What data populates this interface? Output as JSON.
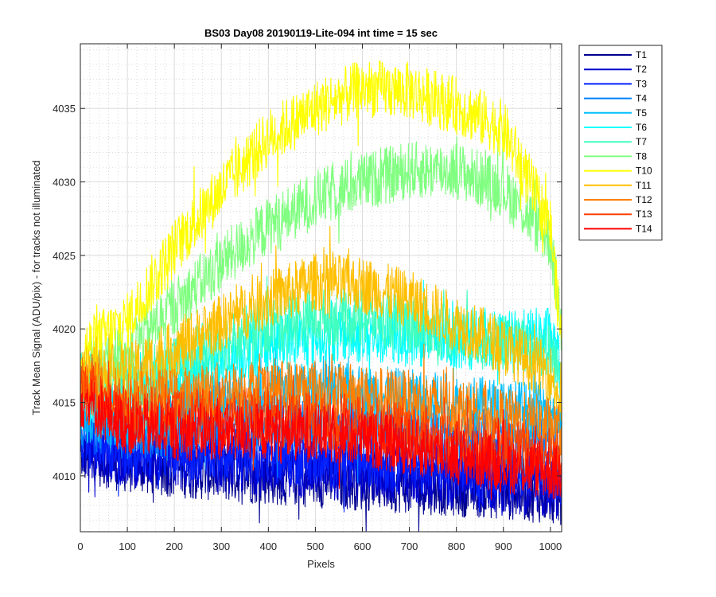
{
  "chart_data": {
    "type": "line",
    "title": "BS03 Day08 20190119-Lite-094 int time = 15 sec",
    "xlabel": "Pixels",
    "ylabel": "Track Mean Signal (ADU/pix) - for tracks not illuminated",
    "xlim": [
      0,
      1024
    ],
    "ylim": [
      4006.2,
      4039.4
    ],
    "x_ticks": [
      0,
      100,
      200,
      300,
      400,
      500,
      600,
      700,
      800,
      900,
      1000
    ],
    "y_ticks": [
      4010,
      4015,
      4020,
      4025,
      4030,
      4035
    ],
    "grid": true,
    "minor_grid": true,
    "legend_position": "outside-top-right",
    "series": [
      {
        "name": "T1",
        "color": "#00008F",
        "x": [
          0,
          100,
          200,
          300,
          400,
          500,
          600,
          700,
          800,
          900,
          1000,
          1024
        ],
        "y": [
          4011.5,
          4010.8,
          4010.5,
          4010.2,
          4010.0,
          4009.8,
          4009.6,
          4009.4,
          4009.2,
          4009.0,
          4008.7,
          4008.6
        ],
        "noise": 1.1
      },
      {
        "name": "T2",
        "color": "#0000CF",
        "x": [
          0,
          100,
          200,
          300,
          400,
          500,
          600,
          700,
          800,
          900,
          1000,
          1024
        ],
        "y": [
          4012.0,
          4011.2,
          4011.0,
          4010.8,
          4010.6,
          4010.4,
          4010.2,
          4010.0,
          4009.7,
          4009.5,
          4009.1,
          4009.0
        ],
        "noise": 1.1
      },
      {
        "name": "T3",
        "color": "#0020FF",
        "x": [
          0,
          100,
          200,
          300,
          400,
          500,
          600,
          700,
          800,
          900,
          1000,
          1024
        ],
        "y": [
          4012.6,
          4011.8,
          4011.6,
          4011.5,
          4011.4,
          4011.2,
          4011.0,
          4010.8,
          4010.6,
          4010.4,
          4010.0,
          4009.8
        ],
        "noise": 1.1
      },
      {
        "name": "T4",
        "color": "#0080FF",
        "x": [
          0,
          100,
          200,
          300,
          400,
          500,
          600,
          700,
          800,
          900,
          1000,
          1024
        ],
        "y": [
          4013.5,
          4013.0,
          4013.2,
          4013.5,
          4013.6,
          4013.5,
          4013.3,
          4013.1,
          4012.8,
          4012.5,
          4012.2,
          4011.6
        ],
        "noise": 1.1
      },
      {
        "name": "T5",
        "color": "#00BFFF",
        "x": [
          0,
          100,
          200,
          300,
          400,
          500,
          600,
          700,
          800,
          900,
          1000,
          1024
        ],
        "y": [
          4014.2,
          4014.0,
          4014.6,
          4015.2,
          4015.6,
          4015.8,
          4015.6,
          4015.3,
          4015.0,
          4014.6,
          4014.4,
          4013.8
        ],
        "noise": 1.1
      },
      {
        "name": "T6",
        "color": "#00FFFF",
        "x": [
          0,
          100,
          200,
          300,
          400,
          500,
          600,
          700,
          800,
          900,
          1000,
          1024
        ],
        "y": [
          4015.5,
          4015.5,
          4016.8,
          4018.0,
          4019.0,
          4019.5,
          4019.6,
          4019.4,
          4019.2,
          4019.2,
          4019.6,
          4017.0
        ],
        "noise": 1.1
      },
      {
        "name": "T7",
        "color": "#40FFBF",
        "x": [
          0,
          100,
          200,
          300,
          400,
          500,
          600,
          700,
          800,
          900,
          1000,
          1024
        ],
        "y": [
          4016.5,
          4016.2,
          4017.6,
          4019.0,
          4020.2,
          4020.8,
          4020.8,
          4020.4,
          4019.8,
          4019.0,
          4018.5,
          4016.5
        ],
        "noise": 1.1
      },
      {
        "name": "T8",
        "color": "#80FF80",
        "x": [
          0,
          100,
          200,
          300,
          400,
          500,
          600,
          700,
          800,
          900,
          1000,
          1024
        ],
        "y": [
          4017.0,
          4018.5,
          4021.5,
          4024.5,
          4027.0,
          4028.8,
          4030.0,
          4030.8,
          4030.8,
          4029.6,
          4026.0,
          4020.0
        ],
        "noise": 1.1
      },
      {
        "name": "T10",
        "color": "#FFFF00",
        "x": [
          0,
          100,
          200,
          300,
          400,
          500,
          600,
          700,
          800,
          900,
          1000,
          1024
        ],
        "y": [
          4018.5,
          4020.5,
          4025.5,
          4029.5,
          4033.0,
          4035.0,
          4036.4,
          4036.2,
          4035.2,
          4033.6,
          4027.0,
          4019.0
        ],
        "noise": 1.1
      },
      {
        "name": "T11",
        "color": "#FFBF00",
        "x": [
          0,
          100,
          200,
          300,
          400,
          500,
          600,
          700,
          800,
          900,
          1000,
          1024
        ],
        "y": [
          4017.0,
          4017.0,
          4018.6,
          4020.4,
          4022.0,
          4023.2,
          4023.0,
          4022.0,
          4020.4,
          4018.8,
          4017.0,
          4014.8
        ],
        "noise": 1.1
      },
      {
        "name": "T12",
        "color": "#FF8000",
        "x": [
          0,
          100,
          200,
          300,
          400,
          500,
          600,
          700,
          800,
          900,
          1000,
          1024
        ],
        "y": [
          4016.2,
          4015.2,
          4015.4,
          4015.8,
          4016.0,
          4016.0,
          4015.6,
          4015.2,
          4014.6,
          4014.0,
          4013.4,
          4012.8
        ],
        "noise": 1.1
      },
      {
        "name": "T13",
        "color": "#FF4000",
        "x": [
          0,
          100,
          200,
          300,
          400,
          500,
          600,
          700,
          800,
          900,
          1000,
          1024
        ],
        "y": [
          4015.6,
          4014.2,
          4014.0,
          4014.0,
          4014.0,
          4013.8,
          4013.5,
          4013.0,
          4012.5,
          4012.0,
          4011.5,
          4011.2
        ],
        "noise": 1.1
      },
      {
        "name": "T14",
        "color": "#FF0000",
        "x": [
          0,
          100,
          200,
          300,
          400,
          500,
          600,
          700,
          800,
          900,
          1000,
          1024
        ],
        "y": [
          4015.2,
          4013.4,
          4013.0,
          4013.0,
          4013.0,
          4012.9,
          4012.5,
          4012.0,
          4011.4,
          4010.8,
          4010.3,
          4010.0
        ],
        "noise": 1.1
      }
    ]
  }
}
